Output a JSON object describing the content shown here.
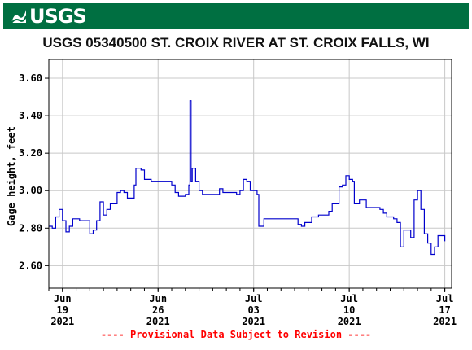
{
  "header": {
    "logo_text": "USGS",
    "logo_icon": "usgs-wave-logo-icon",
    "banner_color": "#006f41"
  },
  "chart_data": {
    "type": "line",
    "title": "USGS 05340500 ST. CROIX RIVER AT ST. CROIX FALLS, WI",
    "ylabel": "Gage height, feet",
    "xlabel": "",
    "ylim": [
      2.48,
      3.7
    ],
    "xlim": [
      "2021-06-18",
      "2021-07-17"
    ],
    "yticks": [
      {
        "label": "3.60",
        "value": 3.6
      },
      {
        "label": "3.40",
        "value": 3.4
      },
      {
        "label": "3.20",
        "value": 3.2
      },
      {
        "label": "3.00",
        "value": 3.0
      },
      {
        "label": "2.80",
        "value": 2.8
      },
      {
        "label": "2.60",
        "value": 2.6
      }
    ],
    "xticks": [
      {
        "month": "Jun",
        "day": "19",
        "year": "2021",
        "date": "2021-06-19"
      },
      {
        "month": "Jun",
        "day": "26",
        "year": "2021",
        "date": "2021-06-26"
      },
      {
        "month": "Jul",
        "day": "03",
        "year": "2021",
        "date": "2021-07-03"
      },
      {
        "month": "Jul",
        "day": "10",
        "year": "2021",
        "date": "2021-07-10"
      },
      {
        "month": "Jul",
        "day": "17",
        "year": "2021",
        "date": "2021-07-17"
      }
    ],
    "grid": true,
    "series_color": "#0000cc",
    "series": [
      {
        "values": [
          [
            "2021-06-18T00:00",
            2.81
          ],
          [
            "2021-06-18T06:00",
            2.8
          ],
          [
            "2021-06-18T12:00",
            2.86
          ],
          [
            "2021-06-18T18:00",
            2.9
          ],
          [
            "2021-06-19T00:00",
            2.84
          ],
          [
            "2021-06-19T06:00",
            2.78
          ],
          [
            "2021-06-19T12:00",
            2.81
          ],
          [
            "2021-06-19T18:00",
            2.85
          ],
          [
            "2021-06-20T06:00",
            2.84
          ],
          [
            "2021-06-20T18:00",
            2.84
          ],
          [
            "2021-06-21T00:00",
            2.77
          ],
          [
            "2021-06-21T06:00",
            2.79
          ],
          [
            "2021-06-21T12:00",
            2.84
          ],
          [
            "2021-06-21T18:00",
            2.94
          ],
          [
            "2021-06-22T00:00",
            2.87
          ],
          [
            "2021-06-22T06:00",
            2.9
          ],
          [
            "2021-06-22T12:00",
            2.93
          ],
          [
            "2021-06-22T18:00",
            2.93
          ],
          [
            "2021-06-23T00:00",
            2.99
          ],
          [
            "2021-06-23T06:00",
            3.0
          ],
          [
            "2021-06-23T12:00",
            2.99
          ],
          [
            "2021-06-23T18:00",
            2.96
          ],
          [
            "2021-06-24T06:00",
            3.03
          ],
          [
            "2021-06-24T09:00",
            3.12
          ],
          [
            "2021-06-24T18:00",
            3.11
          ],
          [
            "2021-06-25T00:00",
            3.06
          ],
          [
            "2021-06-25T12:00",
            3.05
          ],
          [
            "2021-06-26T00:00",
            3.05
          ],
          [
            "2021-06-26T12:00",
            3.05
          ],
          [
            "2021-06-27T00:00",
            3.03
          ],
          [
            "2021-06-27T06:00",
            2.99
          ],
          [
            "2021-06-27T12:00",
            2.97
          ],
          [
            "2021-06-28T00:00",
            2.98
          ],
          [
            "2021-06-28T06:00",
            3.03
          ],
          [
            "2021-06-28T08:00",
            3.48
          ],
          [
            "2021-06-28T10:00",
            3.05
          ],
          [
            "2021-06-28T12:00",
            3.12
          ],
          [
            "2021-06-28T18:00",
            3.05
          ],
          [
            "2021-06-29T00:00",
            3.0
          ],
          [
            "2021-06-29T06:00",
            2.98
          ],
          [
            "2021-06-29T18:00",
            2.98
          ],
          [
            "2021-06-30T06:00",
            2.98
          ],
          [
            "2021-06-30T12:00",
            3.01
          ],
          [
            "2021-06-30T18:00",
            2.99
          ],
          [
            "2021-07-01T06:00",
            2.99
          ],
          [
            "2021-07-01T12:00",
            2.99
          ],
          [
            "2021-07-01T18:00",
            2.98
          ],
          [
            "2021-07-02T00:00",
            3.0
          ],
          [
            "2021-07-02T06:00",
            3.06
          ],
          [
            "2021-07-02T12:00",
            3.05
          ],
          [
            "2021-07-02T18:00",
            3.0
          ],
          [
            "2021-07-03T06:00",
            2.98
          ],
          [
            "2021-07-03T09:00",
            2.81
          ],
          [
            "2021-07-03T18:00",
            2.85
          ],
          [
            "2021-07-04T12:00",
            2.85
          ],
          [
            "2021-07-05T06:00",
            2.85
          ],
          [
            "2021-07-05T18:00",
            2.85
          ],
          [
            "2021-07-06T06:00",
            2.82
          ],
          [
            "2021-07-06T12:00",
            2.81
          ],
          [
            "2021-07-06T18:00",
            2.83
          ],
          [
            "2021-07-07T06:00",
            2.86
          ],
          [
            "2021-07-07T18:00",
            2.87
          ],
          [
            "2021-07-08T06:00",
            2.87
          ],
          [
            "2021-07-08T12:00",
            2.89
          ],
          [
            "2021-07-08T18:00",
            2.93
          ],
          [
            "2021-07-09T06:00",
            3.02
          ],
          [
            "2021-07-09T12:00",
            3.03
          ],
          [
            "2021-07-09T18:00",
            3.08
          ],
          [
            "2021-07-10T00:00",
            3.06
          ],
          [
            "2021-07-10T06:00",
            3.05
          ],
          [
            "2021-07-10T09:00",
            2.93
          ],
          [
            "2021-07-10T18:00",
            2.95
          ],
          [
            "2021-07-11T06:00",
            2.91
          ],
          [
            "2021-07-11T18:00",
            2.91
          ],
          [
            "2021-07-12T06:00",
            2.9
          ],
          [
            "2021-07-12T12:00",
            2.88
          ],
          [
            "2021-07-12T18:00",
            2.86
          ],
          [
            "2021-07-13T06:00",
            2.85
          ],
          [
            "2021-07-13T12:00",
            2.83
          ],
          [
            "2021-07-13T18:00",
            2.7
          ],
          [
            "2021-07-14T00:00",
            2.79
          ],
          [
            "2021-07-14T09:00",
            2.79
          ],
          [
            "2021-07-14T12:00",
            2.75
          ],
          [
            "2021-07-14T18:00",
            2.95
          ],
          [
            "2021-07-15T00:00",
            3.0
          ],
          [
            "2021-07-15T06:00",
            2.9
          ],
          [
            "2021-07-15T12:00",
            2.77
          ],
          [
            "2021-07-15T18:00",
            2.72
          ],
          [
            "2021-07-16T00:00",
            2.66
          ],
          [
            "2021-07-16T06:00",
            2.7
          ],
          [
            "2021-07-16T12:00",
            2.76
          ],
          [
            "2021-07-16T18:00",
            2.76
          ],
          [
            "2021-07-17T00:00",
            2.73
          ]
        ]
      }
    ]
  },
  "footer": {
    "text": "---- Provisional Data Subject to Revision ----",
    "color": "#ff0000"
  }
}
